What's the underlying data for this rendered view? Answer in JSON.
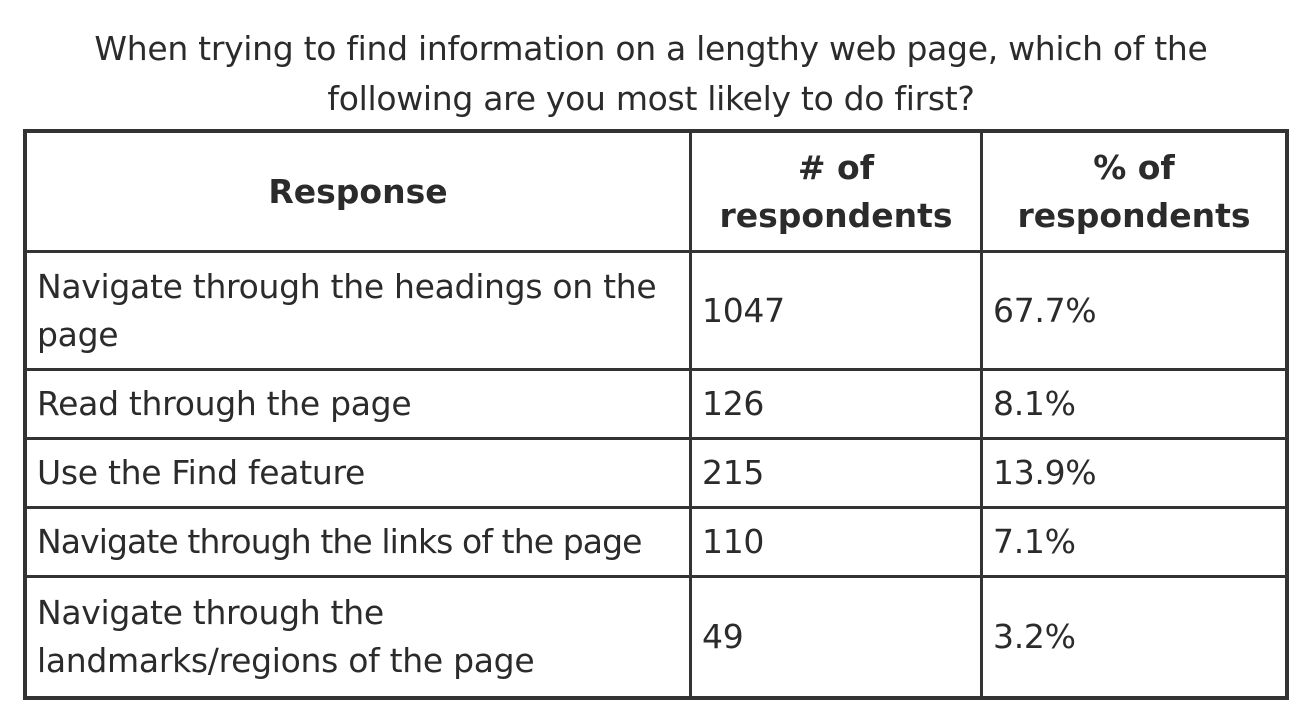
{
  "caption": {
    "line1": "When trying to find information on a lengthy web page, which of the",
    "line2": "following are you most likely to do first?"
  },
  "table": {
    "headers": {
      "response": "Response",
      "count_line1": "# of",
      "count_line2": "respondents",
      "percent_line1": "% of",
      "percent_line2": "respondents"
    },
    "rows": [
      {
        "response": "Navigate through the headings on the page",
        "count": "1047",
        "percent": "67.7%"
      },
      {
        "response": "Read through the page",
        "count": "126",
        "percent": "8.1%"
      },
      {
        "response": "Use the Find feature",
        "count": "215",
        "percent": "13.9%"
      },
      {
        "response": "Navigate through the links of the page",
        "count": "110",
        "percent": "7.1%"
      },
      {
        "response": "Navigate through the landmarks/regions of the page",
        "count": "49",
        "percent": "3.2%"
      }
    ]
  },
  "chart_data": {
    "type": "table",
    "title": "When trying to find information on a lengthy web page, which of the following are you most likely to do first?",
    "columns": [
      "Response",
      "# of respondents",
      "% of respondents"
    ],
    "categories": [
      "Navigate through the headings on the page",
      "Read through the page",
      "Use the Find feature",
      "Navigate through the links of the page",
      "Navigate through the landmarks/regions of the page"
    ],
    "series": [
      {
        "name": "# of respondents",
        "values": [
          1047,
          126,
          215,
          110,
          49
        ]
      },
      {
        "name": "% of respondents",
        "values": [
          67.7,
          8.1,
          13.9,
          7.1,
          3.2
        ]
      }
    ]
  }
}
